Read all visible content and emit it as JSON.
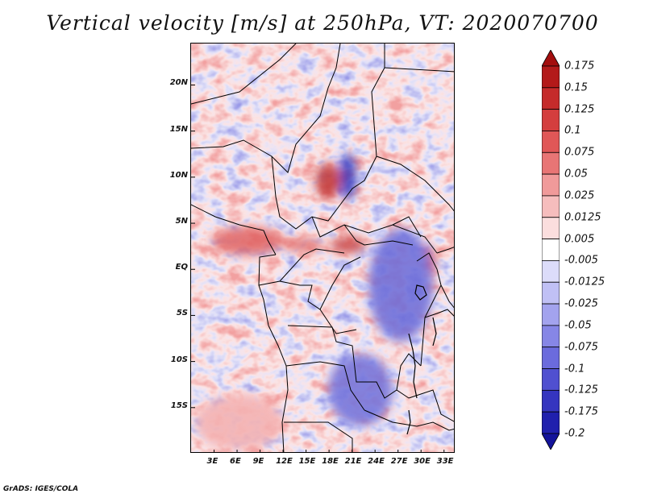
{
  "title": "Vertical velocity [m/s] at 250hPa, VT: 2020070700",
  "footer": "GrADS: IGES/COLA",
  "map": {
    "field": "vertical velocity",
    "units": "m/s",
    "level": "250hPa",
    "valid_time": "2020070700",
    "lat_labels": [
      "20N",
      "15N",
      "10N",
      "5N",
      "EQ",
      "5S",
      "10S",
      "15S"
    ],
    "lon_labels": [
      "3E",
      "6E",
      "9E",
      "12E",
      "15E",
      "18E",
      "21E",
      "24E",
      "27E",
      "30E",
      "33E"
    ],
    "lat_range": [
      -20,
      24.5
    ],
    "lon_range": [
      0,
      34.5
    ]
  },
  "colorbar": {
    "labels": [
      "0.175",
      "0.15",
      "0.125",
      "0.1",
      "0.075",
      "0.05",
      "0.025",
      "0.0125",
      "0.005",
      "-0.005",
      "-0.0125",
      "-0.025",
      "-0.05",
      "-0.075",
      "-0.1",
      "-0.125",
      "-0.175",
      "-0.2"
    ],
    "colors": [
      "#a30e0e",
      "#b31a1a",
      "#c52b2b",
      "#d43e3e",
      "#e05757",
      "#e87575",
      "#f09a9a",
      "#f6bdbd",
      "#fbdede",
      "#ffffff",
      "#dcdcfa",
      "#c0c0f5",
      "#a3a3ee",
      "#8686e6",
      "#6b6bdd",
      "#5050d0",
      "#3535bf",
      "#2020ad",
      "#13139a"
    ]
  }
}
